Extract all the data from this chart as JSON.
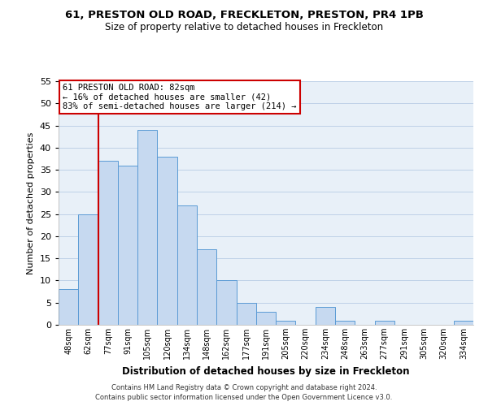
{
  "title1": "61, PRESTON OLD ROAD, FRECKLETON, PRESTON, PR4 1PB",
  "title2": "Size of property relative to detached houses in Freckleton",
  "xlabel": "Distribution of detached houses by size in Freckleton",
  "ylabel": "Number of detached properties",
  "bar_labels": [
    "48sqm",
    "62sqm",
    "77sqm",
    "91sqm",
    "105sqm",
    "120sqm",
    "134sqm",
    "148sqm",
    "162sqm",
    "177sqm",
    "191sqm",
    "205sqm",
    "220sqm",
    "234sqm",
    "248sqm",
    "263sqm",
    "277sqm",
    "291sqm",
    "305sqm",
    "320sqm",
    "334sqm"
  ],
  "bar_values": [
    8,
    25,
    37,
    36,
    44,
    38,
    27,
    17,
    10,
    5,
    3,
    1,
    0,
    4,
    1,
    0,
    1,
    0,
    0,
    0,
    1
  ],
  "bar_color": "#c6d9f0",
  "bar_edge_color": "#5b9bd5",
  "vline_color": "#cc0000",
  "ylim": [
    0,
    55
  ],
  "yticks": [
    0,
    5,
    10,
    15,
    20,
    25,
    30,
    35,
    40,
    45,
    50,
    55
  ],
  "annotation_title": "61 PRESTON OLD ROAD: 82sqm",
  "annotation_line1": "← 16% of detached houses are smaller (42)",
  "annotation_line2": "83% of semi-detached houses are larger (214) →",
  "annotation_box_color": "#ffffff",
  "annotation_box_edge": "#cc0000",
  "footer1": "Contains HM Land Registry data © Crown copyright and database right 2024.",
  "footer2": "Contains public sector information licensed under the Open Government Licence v3.0.",
  "bg_color": "#e8f0f8"
}
